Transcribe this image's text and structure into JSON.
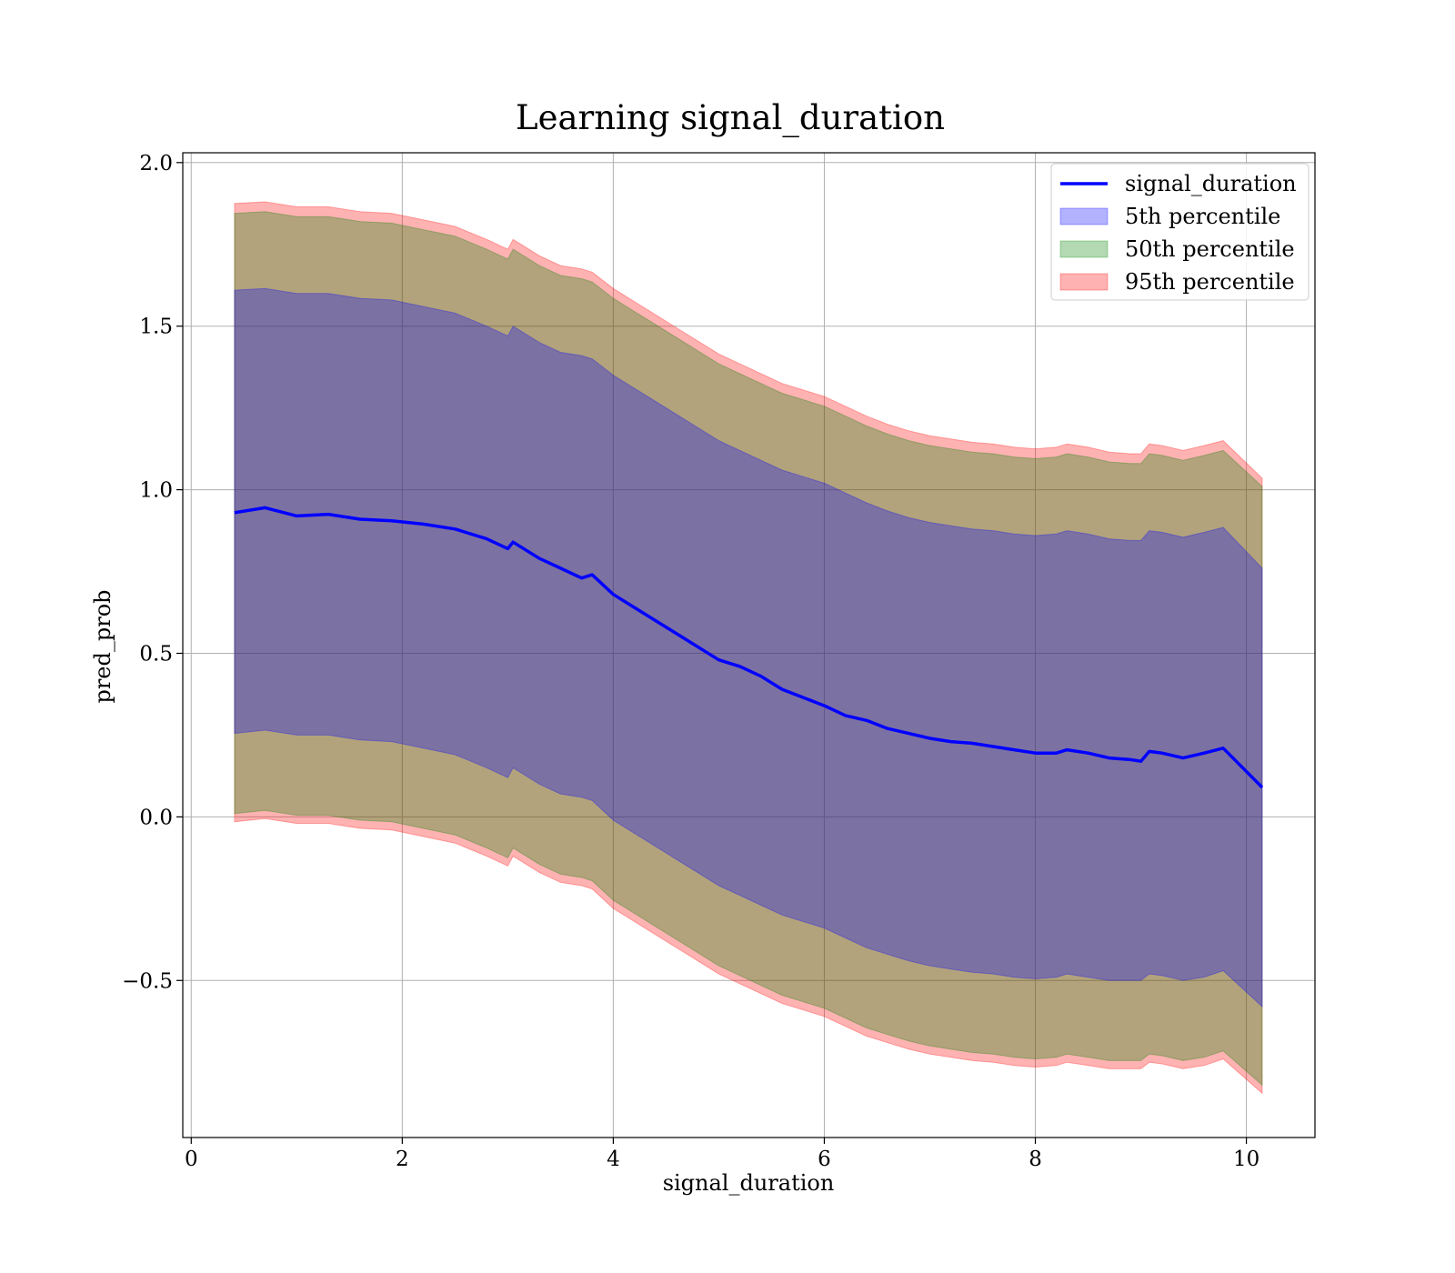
{
  "chart_data": {
    "type": "area",
    "title": "Learning signal_duration",
    "xlabel": "signal_duration",
    "ylabel": "pred_prob",
    "xlim": [
      -0.08,
      10.65
    ],
    "ylim": [
      -0.98,
      2.03
    ],
    "xticks": [
      0,
      2,
      4,
      6,
      8,
      10
    ],
    "xtick_labels": [
      "0",
      "2",
      "4",
      "6",
      "8",
      "10"
    ],
    "yticks": [
      -0.5,
      0.0,
      0.5,
      1.0,
      1.5,
      2.0
    ],
    "ytick_labels": [
      "−0.5",
      "0.0",
      "0.5",
      "1.0",
      "1.5",
      "2.0"
    ],
    "grid": true,
    "legend_position": "top-right",
    "x": [
      0.41,
      0.7,
      1.0,
      1.3,
      1.6,
      1.9,
      2.2,
      2.5,
      2.8,
      3.0,
      3.05,
      3.3,
      3.5,
      3.7,
      3.8,
      4.0,
      4.2,
      4.4,
      4.6,
      4.8,
      5.0,
      5.2,
      5.4,
      5.6,
      5.8,
      6.0,
      6.2,
      6.4,
      6.6,
      6.8,
      7.0,
      7.2,
      7.4,
      7.6,
      7.8,
      8.0,
      8.2,
      8.3,
      8.5,
      8.7,
      8.9,
      9.0,
      9.08,
      9.2,
      9.4,
      9.6,
      9.78,
      10.15
    ],
    "series": [
      {
        "name": "signal_duration",
        "color": "#0000ff",
        "values": [
          0.93,
          0.945,
          0.92,
          0.925,
          0.91,
          0.905,
          0.895,
          0.88,
          0.85,
          0.82,
          0.84,
          0.79,
          0.76,
          0.73,
          0.74,
          0.68,
          0.64,
          0.6,
          0.56,
          0.52,
          0.48,
          0.46,
          0.43,
          0.39,
          0.365,
          0.34,
          0.31,
          0.295,
          0.27,
          0.255,
          0.24,
          0.23,
          0.225,
          0.215,
          0.205,
          0.195,
          0.195,
          0.205,
          0.195,
          0.18,
          0.175,
          0.17,
          0.2,
          0.195,
          0.18,
          0.195,
          0.21,
          0.09
        ]
      },
      {
        "name": "5th percentile",
        "color": "#0000ff",
        "band_upper": [
          1.61,
          1.615,
          1.6,
          1.6,
          1.585,
          1.58,
          1.56,
          1.54,
          1.5,
          1.47,
          1.5,
          1.45,
          1.42,
          1.41,
          1.4,
          1.35,
          1.31,
          1.27,
          1.23,
          1.19,
          1.15,
          1.12,
          1.09,
          1.06,
          1.04,
          1.02,
          0.99,
          0.96,
          0.935,
          0.915,
          0.9,
          0.89,
          0.88,
          0.875,
          0.865,
          0.86,
          0.865,
          0.875,
          0.865,
          0.85,
          0.845,
          0.845,
          0.875,
          0.87,
          0.855,
          0.87,
          0.885,
          0.76
        ],
        "band_lower": [
          0.255,
          0.265,
          0.25,
          0.25,
          0.235,
          0.23,
          0.21,
          0.19,
          0.15,
          0.12,
          0.15,
          0.1,
          0.07,
          0.06,
          0.05,
          -0.01,
          -0.05,
          -0.09,
          -0.13,
          -0.17,
          -0.21,
          -0.24,
          -0.27,
          -0.3,
          -0.32,
          -0.34,
          -0.37,
          -0.4,
          -0.42,
          -0.44,
          -0.455,
          -0.465,
          -0.475,
          -0.48,
          -0.49,
          -0.495,
          -0.49,
          -0.48,
          -0.49,
          -0.5,
          -0.5,
          -0.5,
          -0.48,
          -0.485,
          -0.5,
          -0.49,
          -0.47,
          -0.58
        ]
      },
      {
        "name": "50th percentile",
        "color": "#008000",
        "band_upper": [
          1.845,
          1.85,
          1.835,
          1.835,
          1.82,
          1.815,
          1.795,
          1.775,
          1.735,
          1.705,
          1.735,
          1.685,
          1.655,
          1.645,
          1.635,
          1.585,
          1.545,
          1.505,
          1.465,
          1.425,
          1.385,
          1.355,
          1.325,
          1.295,
          1.275,
          1.255,
          1.225,
          1.195,
          1.17,
          1.15,
          1.135,
          1.125,
          1.115,
          1.11,
          1.1,
          1.095,
          1.1,
          1.11,
          1.1,
          1.085,
          1.08,
          1.08,
          1.11,
          1.105,
          1.09,
          1.105,
          1.12,
          1.01
        ],
        "band_lower": [
          0.01,
          0.02,
          0.005,
          0.005,
          -0.01,
          -0.015,
          -0.035,
          -0.055,
          -0.095,
          -0.125,
          -0.095,
          -0.145,
          -0.175,
          -0.185,
          -0.195,
          -0.255,
          -0.295,
          -0.335,
          -0.375,
          -0.415,
          -0.455,
          -0.485,
          -0.515,
          -0.545,
          -0.565,
          -0.585,
          -0.615,
          -0.645,
          -0.665,
          -0.685,
          -0.7,
          -0.71,
          -0.72,
          -0.725,
          -0.735,
          -0.74,
          -0.735,
          -0.725,
          -0.735,
          -0.745,
          -0.745,
          -0.745,
          -0.725,
          -0.73,
          -0.745,
          -0.735,
          -0.715,
          -0.82
        ]
      },
      {
        "name": "95th percentile",
        "color": "#ff0000",
        "band_upper": [
          1.875,
          1.88,
          1.865,
          1.865,
          1.85,
          1.845,
          1.825,
          1.805,
          1.765,
          1.735,
          1.765,
          1.715,
          1.685,
          1.675,
          1.665,
          1.615,
          1.575,
          1.535,
          1.495,
          1.455,
          1.415,
          1.385,
          1.355,
          1.325,
          1.305,
          1.285,
          1.255,
          1.225,
          1.2,
          1.18,
          1.165,
          1.155,
          1.145,
          1.14,
          1.13,
          1.125,
          1.13,
          1.14,
          1.13,
          1.115,
          1.11,
          1.11,
          1.14,
          1.135,
          1.12,
          1.135,
          1.15,
          1.035
        ],
        "band_lower": [
          -0.015,
          -0.005,
          -0.02,
          -0.02,
          -0.035,
          -0.04,
          -0.06,
          -0.08,
          -0.12,
          -0.15,
          -0.12,
          -0.17,
          -0.2,
          -0.21,
          -0.22,
          -0.28,
          -0.32,
          -0.36,
          -0.4,
          -0.44,
          -0.48,
          -0.51,
          -0.54,
          -0.57,
          -0.59,
          -0.61,
          -0.64,
          -0.67,
          -0.69,
          -0.71,
          -0.725,
          -0.735,
          -0.745,
          -0.75,
          -0.76,
          -0.765,
          -0.76,
          -0.75,
          -0.76,
          -0.77,
          -0.77,
          -0.77,
          -0.75,
          -0.755,
          -0.77,
          -0.76,
          -0.74,
          -0.845
        ]
      }
    ]
  }
}
